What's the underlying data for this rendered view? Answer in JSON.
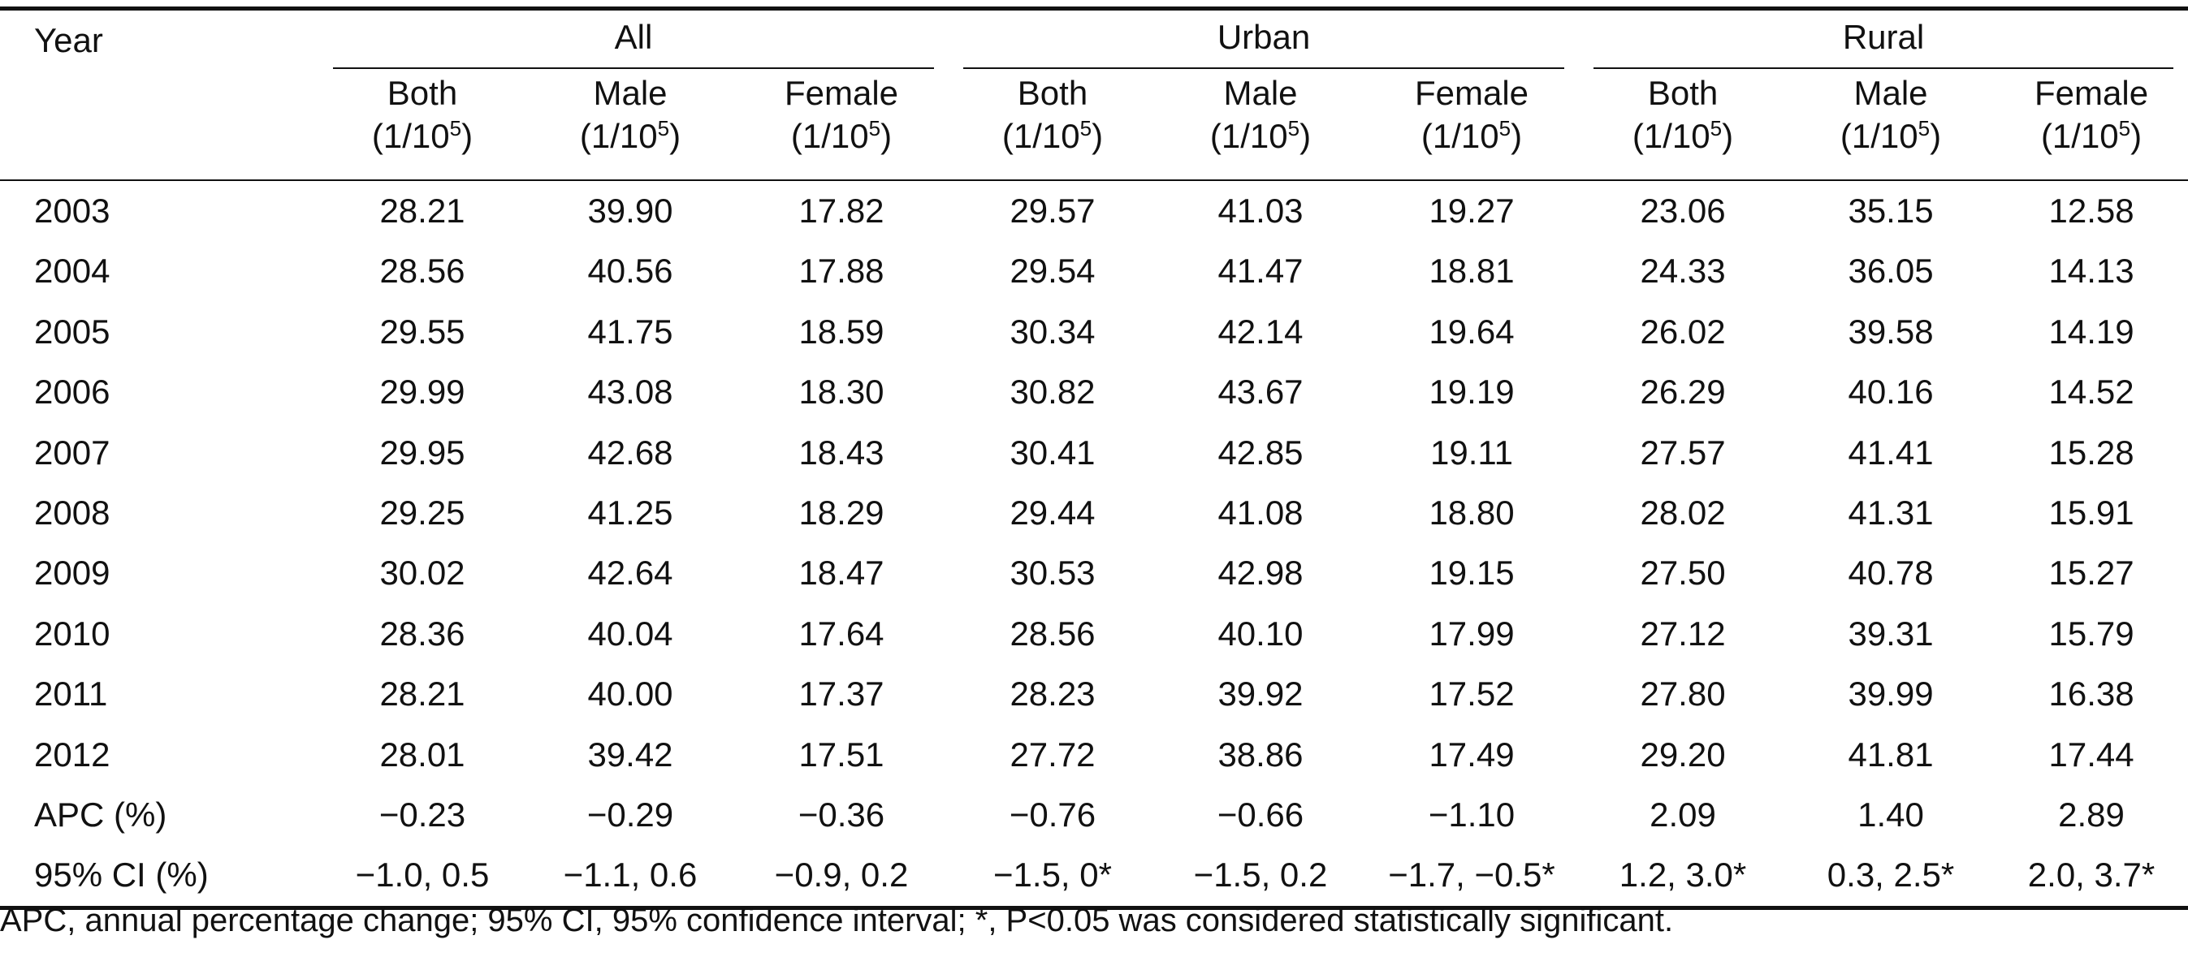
{
  "header": {
    "year_label": "Year",
    "groups": [
      "All",
      "Urban",
      "Rural"
    ],
    "subcolumns": [
      "Both",
      "Male",
      "Female"
    ],
    "unit_prefix": "(1/10",
    "unit_exp": "5",
    "unit_suffix": ")"
  },
  "rows": [
    {
      "label": "2003",
      "values": [
        "28.21",
        "39.90",
        "17.82",
        "29.57",
        "41.03",
        "19.27",
        "23.06",
        "35.15",
        "12.58"
      ]
    },
    {
      "label": "2004",
      "values": [
        "28.56",
        "40.56",
        "17.88",
        "29.54",
        "41.47",
        "18.81",
        "24.33",
        "36.05",
        "14.13"
      ]
    },
    {
      "label": "2005",
      "values": [
        "29.55",
        "41.75",
        "18.59",
        "30.34",
        "42.14",
        "19.64",
        "26.02",
        "39.58",
        "14.19"
      ]
    },
    {
      "label": "2006",
      "values": [
        "29.99",
        "43.08",
        "18.30",
        "30.82",
        "43.67",
        "19.19",
        "26.29",
        "40.16",
        "14.52"
      ]
    },
    {
      "label": "2007",
      "values": [
        "29.95",
        "42.68",
        "18.43",
        "30.41",
        "42.85",
        "19.11",
        "27.57",
        "41.41",
        "15.28"
      ]
    },
    {
      "label": "2008",
      "values": [
        "29.25",
        "41.25",
        "18.29",
        "29.44",
        "41.08",
        "18.80",
        "28.02",
        "41.31",
        "15.91"
      ]
    },
    {
      "label": "2009",
      "values": [
        "30.02",
        "42.64",
        "18.47",
        "30.53",
        "42.98",
        "19.15",
        "27.50",
        "40.78",
        "15.27"
      ]
    },
    {
      "label": "2010",
      "values": [
        "28.36",
        "40.04",
        "17.64",
        "28.56",
        "40.10",
        "17.99",
        "27.12",
        "39.31",
        "15.79"
      ]
    },
    {
      "label": "2011",
      "values": [
        "28.21",
        "40.00",
        "17.37",
        "28.23",
        "39.92",
        "17.52",
        "27.80",
        "39.99",
        "16.38"
      ]
    },
    {
      "label": "2012",
      "values": [
        "28.01",
        "39.42",
        "17.51",
        "27.72",
        "38.86",
        "17.49",
        "29.20",
        "41.81",
        "17.44"
      ]
    },
    {
      "label": "APC (%)",
      "values": [
        "−0.23",
        "−0.29",
        "−0.36",
        "−0.76",
        "−0.66",
        "−1.10",
        "2.09",
        "1.40",
        "2.89"
      ]
    },
    {
      "label": "95% CI (%)",
      "values": [
        "−1.0, 0.5",
        "−1.1, 0.6",
        "−0.9, 0.2",
        "−1.5, 0*",
        "−1.5, 0.2",
        "−1.7, −0.5*",
        "1.2, 3.0*",
        "0.3, 2.5*",
        "2.0, 3.7*"
      ]
    }
  ],
  "footnote": "APC, annual percentage change; 95% CI, 95% confidence interval; *, P<0.05 was considered statistically significant."
}
